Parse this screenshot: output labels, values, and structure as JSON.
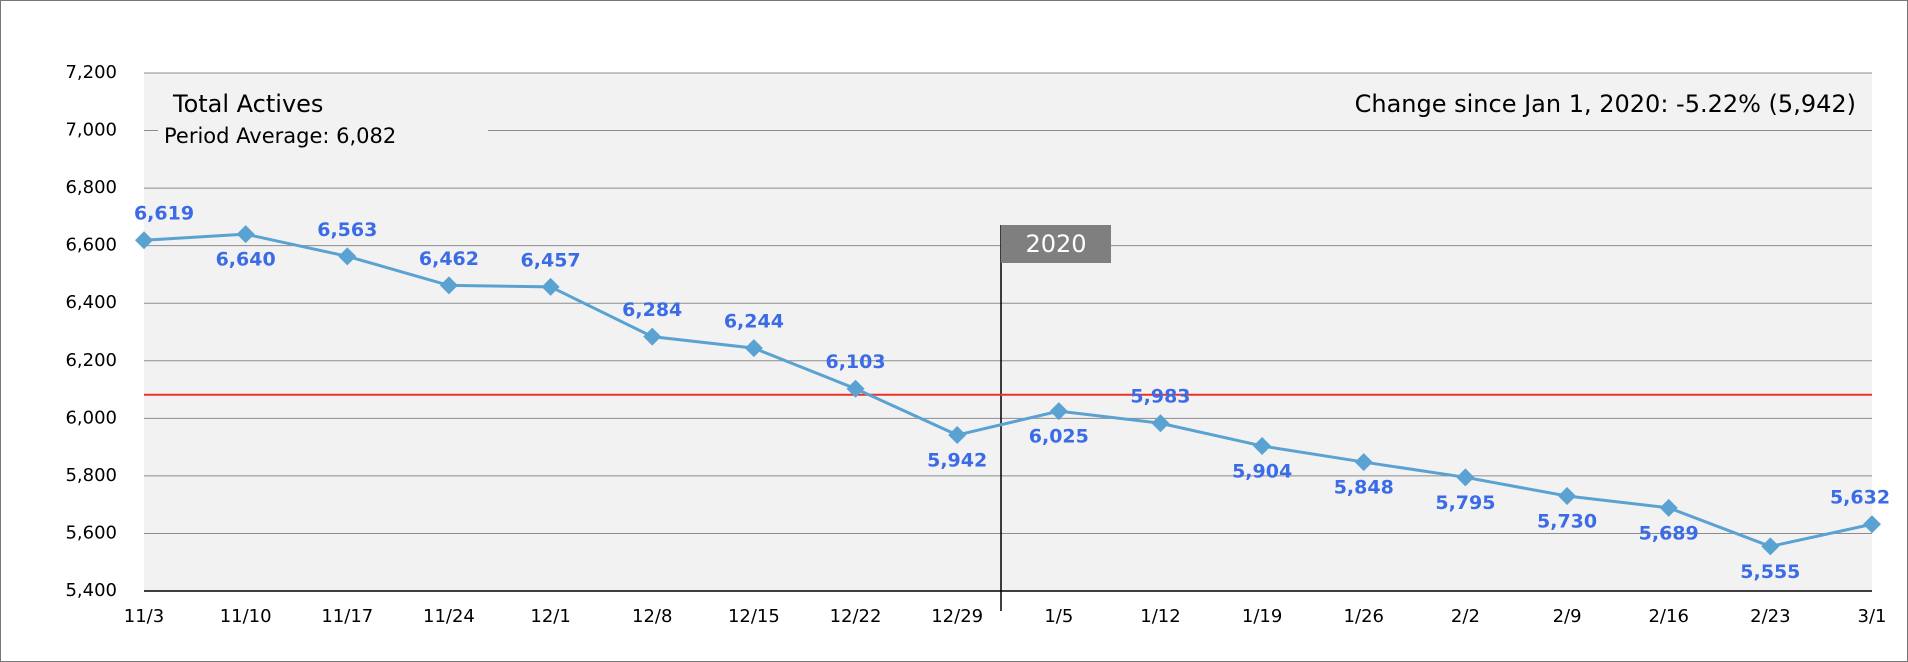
{
  "chart_data": {
    "type": "line",
    "title": "Total Actives",
    "average_label": "Period Average: 6,082",
    "average": 6082,
    "annotation": "Change since Jan 1, 2020: -5.22% (5,942)",
    "marker_label": "2020",
    "categories": [
      "11/3",
      "11/10",
      "11/17",
      "11/24",
      "12/1",
      "12/8",
      "12/15",
      "12/22",
      "12/29",
      "1/5",
      "1/12",
      "1/19",
      "1/26",
      "2/2",
      "2/9",
      "2/16",
      "2/23",
      "3/1"
    ],
    "series": [
      {
        "name": "Total Actives",
        "color": "#5aa2d2",
        "values": [
          6619,
          6640,
          6563,
          6462,
          6457,
          6284,
          6244,
          6103,
          5942,
          6025,
          5983,
          5904,
          5848,
          5795,
          5730,
          5689,
          5555,
          5632
        ],
        "value_labels": [
          "6,619",
          "6,640",
          "6,563",
          "6,462",
          "6,457",
          "6,284",
          "6,244",
          "6,103",
          "5,942",
          "6,025",
          "5,983",
          "5,904",
          "5,848",
          "5,795",
          "5,730",
          "5,689",
          "5,555",
          "5,632"
        ]
      }
    ],
    "label_color": "#3b6ce6",
    "average_color": "#e8322c",
    "ylim": [
      5400,
      7200
    ],
    "yticks": [
      {
        "value": 5400,
        "label": "5,400"
      },
      {
        "value": 5600,
        "label": "5,600"
      },
      {
        "value": 5800,
        "label": "5,800"
      },
      {
        "value": 6000,
        "label": "6,000"
      },
      {
        "value": 6200,
        "label": "6,200"
      },
      {
        "value": 6400,
        "label": "6,400"
      },
      {
        "value": 6600,
        "label": "6,600"
      },
      {
        "value": 6800,
        "label": "6,800"
      },
      {
        "value": 7000,
        "label": "7,000"
      },
      {
        "value": 7200,
        "label": "7,200"
      }
    ],
    "grid": true
  }
}
